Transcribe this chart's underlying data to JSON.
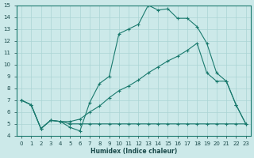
{
  "xlabel": "Humidex (Indice chaleur)",
  "xlim": [
    -0.5,
    23.5
  ],
  "ylim": [
    4,
    15
  ],
  "xticks": [
    0,
    1,
    2,
    3,
    4,
    5,
    6,
    7,
    8,
    9,
    10,
    11,
    12,
    13,
    14,
    15,
    16,
    17,
    18,
    19,
    20,
    21,
    22,
    23
  ],
  "yticks": [
    4,
    5,
    6,
    7,
    8,
    9,
    10,
    11,
    12,
    13,
    14,
    15
  ],
  "bg_color": "#cce9e9",
  "grid_color": "#aad4d4",
  "line_color": "#1a7a6e",
  "line1_x": [
    0,
    1,
    2,
    3,
    4,
    5,
    6,
    7,
    8,
    9,
    10,
    11,
    12,
    13,
    14,
    15,
    16,
    17,
    18,
    19,
    20,
    21,
    22,
    23
  ],
  "line1_y": [
    7.0,
    6.6,
    4.6,
    5.3,
    5.2,
    4.7,
    4.4,
    6.8,
    8.4,
    9.0,
    12.6,
    13.0,
    13.4,
    15.0,
    14.6,
    14.7,
    13.9,
    13.9,
    13.2,
    11.8,
    9.3,
    8.6,
    6.6,
    5.0
  ],
  "line2_x": [
    0,
    1,
    2,
    3,
    4,
    5,
    6,
    7,
    8,
    9,
    10,
    11,
    12,
    13,
    14,
    15,
    16,
    17,
    18,
    19,
    20,
    21,
    22,
    23
  ],
  "line2_y": [
    7.0,
    6.6,
    4.6,
    5.3,
    5.2,
    5.2,
    5.4,
    6.0,
    6.5,
    7.2,
    7.8,
    8.2,
    8.7,
    9.3,
    9.8,
    10.3,
    10.7,
    11.2,
    11.8,
    9.3,
    8.6,
    8.6,
    6.6,
    5.0
  ],
  "line3_x": [
    0,
    1,
    2,
    3,
    4,
    5,
    6,
    7,
    8,
    9,
    10,
    11,
    12,
    13,
    14,
    15,
    16,
    17,
    18,
    19,
    20,
    21,
    22,
    23
  ],
  "line3_y": [
    7.0,
    6.6,
    4.6,
    5.3,
    5.2,
    5.0,
    5.0,
    5.0,
    5.0,
    5.0,
    5.0,
    5.0,
    5.0,
    5.0,
    5.0,
    5.0,
    5.0,
    5.0,
    5.0,
    5.0,
    5.0,
    5.0,
    5.0,
    5.0
  ]
}
